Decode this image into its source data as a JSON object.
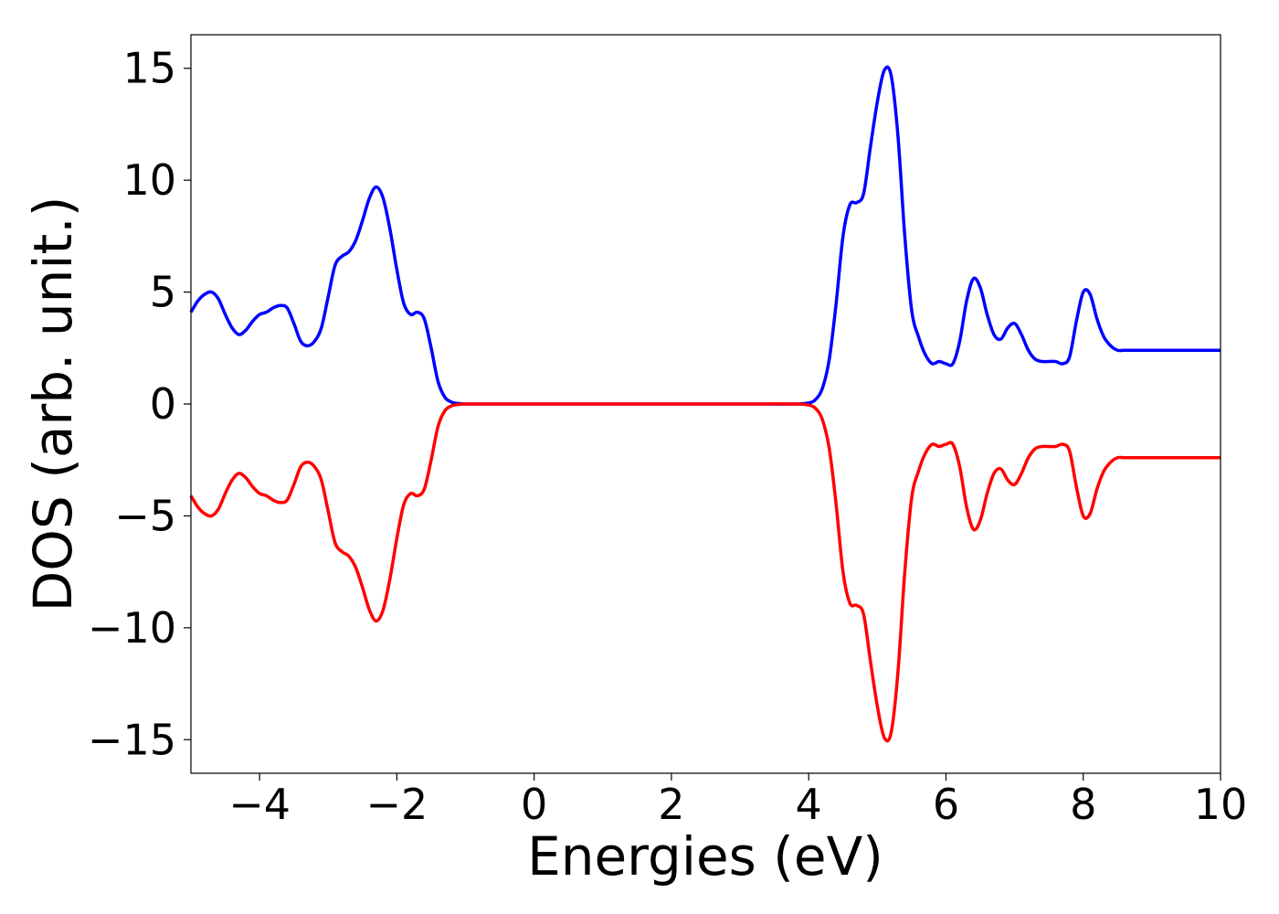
{
  "chart_data": {
    "type": "line",
    "title": "",
    "xlabel": "Energies (eV)",
    "ylabel": "DOS (arb. unit.)",
    "xlim": [
      -5,
      10
    ],
    "ylim": [
      -16.5,
      16.5
    ],
    "xticks": [
      -4,
      -2,
      0,
      2,
      4,
      6,
      8,
      10
    ],
    "xtick_labels": [
      "−4",
      "−2",
      "0",
      "2",
      "4",
      "6",
      "8",
      "10"
    ],
    "yticks": [
      15,
      10,
      5,
      0,
      -5,
      -10,
      -15
    ],
    "ytick_labels": [
      "15",
      "10",
      "5",
      "0",
      "−5",
      "−10",
      "−15"
    ],
    "grid": false,
    "legend": "none",
    "series": [
      {
        "color": "#0000ff",
        "x": [
          -5.0,
          -4.9,
          -4.8,
          -4.7,
          -4.6,
          -4.5,
          -4.4,
          -4.3,
          -4.2,
          -4.1,
          -4.0,
          -3.9,
          -3.8,
          -3.7,
          -3.6,
          -3.5,
          -3.4,
          -3.3,
          -3.2,
          -3.1,
          -3.0,
          -2.9,
          -2.8,
          -2.7,
          -2.6,
          -2.5,
          -2.4,
          -2.3,
          -2.2,
          -2.1,
          -2.0,
          -1.9,
          -1.8,
          -1.7,
          -1.6,
          -1.5,
          -1.4,
          -1.3,
          -1.2,
          -1.1,
          -1.0,
          -0.9,
          -0.8,
          -0.7,
          -0.6,
          -0.5,
          0.0,
          1.0,
          2.0,
          3.0,
          3.8,
          4.0,
          4.1,
          4.2,
          4.3,
          4.4,
          4.5,
          4.6,
          4.7,
          4.8,
          4.9,
          5.0,
          5.1,
          5.2,
          5.3,
          5.4,
          5.5,
          5.6,
          5.7,
          5.8,
          5.9,
          6.0,
          6.1,
          6.2,
          6.3,
          6.4,
          6.5,
          6.6,
          6.7,
          6.8,
          6.9,
          7.0,
          7.1,
          7.2,
          7.3,
          7.4,
          7.5,
          7.6,
          7.7,
          7.8,
          7.9,
          8.0,
          8.1,
          8.2,
          8.3,
          8.4,
          8.5,
          8.6,
          8.7,
          8.8,
          8.9,
          9.0,
          9.1,
          9.2,
          9.3,
          9.4,
          9.5,
          9.6,
          9.7,
          9.8,
          9.9,
          10.0
        ],
        "values": [
          4.1,
          4.6,
          4.9,
          5.0,
          4.7,
          4.0,
          3.4,
          3.1,
          3.3,
          3.7,
          4.0,
          4.1,
          4.3,
          4.4,
          4.3,
          3.6,
          2.8,
          2.6,
          2.8,
          3.4,
          4.8,
          6.2,
          6.6,
          6.8,
          7.3,
          8.2,
          9.2,
          9.7,
          9.2,
          7.8,
          6.0,
          4.5,
          4.0,
          4.1,
          3.8,
          2.5,
          1.0,
          0.3,
          0.08,
          0.02,
          0.0,
          0.0,
          0.0,
          0.0,
          0.0,
          0.0,
          0.0,
          0.0,
          0.0,
          0.0,
          0.0,
          0.05,
          0.2,
          0.7,
          2.0,
          4.5,
          7.5,
          8.9,
          9.0,
          9.4,
          11.5,
          13.5,
          14.9,
          14.7,
          12.0,
          7.5,
          4.2,
          3.0,
          2.2,
          1.8,
          1.9,
          1.8,
          1.8,
          2.8,
          4.6,
          5.6,
          5.2,
          4.0,
          3.1,
          2.9,
          3.4,
          3.6,
          3.1,
          2.4,
          2.0,
          1.9,
          1.9,
          1.9,
          1.8,
          2.1,
          3.7,
          5.0,
          4.9,
          3.8,
          3.0,
          2.6,
          2.4,
          2.4,
          2.4,
          2.4,
          2.4,
          2.4,
          2.4,
          2.4,
          2.4,
          2.4,
          2.4,
          2.4,
          2.4,
          2.4,
          2.4,
          2.4
        ]
      },
      {
        "color": "#ff0000",
        "x": [
          -5.0,
          -4.9,
          -4.8,
          -4.7,
          -4.6,
          -4.5,
          -4.4,
          -4.3,
          -4.2,
          -4.1,
          -4.0,
          -3.9,
          -3.8,
          -3.7,
          -3.6,
          -3.5,
          -3.4,
          -3.3,
          -3.2,
          -3.1,
          -3.0,
          -2.9,
          -2.8,
          -2.7,
          -2.6,
          -2.5,
          -2.4,
          -2.3,
          -2.2,
          -2.1,
          -2.0,
          -1.9,
          -1.8,
          -1.7,
          -1.6,
          -1.5,
          -1.4,
          -1.3,
          -1.2,
          -1.1,
          -1.0,
          -0.9,
          -0.8,
          -0.7,
          -0.6,
          -0.5,
          0.0,
          1.0,
          2.0,
          3.0,
          3.8,
          4.0,
          4.1,
          4.2,
          4.3,
          4.4,
          4.5,
          4.6,
          4.7,
          4.8,
          4.9,
          5.0,
          5.1,
          5.2,
          5.3,
          5.4,
          5.5,
          5.6,
          5.7,
          5.8,
          5.9,
          6.0,
          6.1,
          6.2,
          6.3,
          6.4,
          6.5,
          6.6,
          6.7,
          6.8,
          6.9,
          7.0,
          7.1,
          7.2,
          7.3,
          7.4,
          7.5,
          7.6,
          7.7,
          7.8,
          7.9,
          8.0,
          8.1,
          8.2,
          8.3,
          8.4,
          8.5,
          8.6,
          8.7,
          8.8,
          8.9,
          9.0,
          9.1,
          9.2,
          9.3,
          9.4,
          9.5,
          9.6,
          9.7,
          9.8,
          9.9,
          10.0
        ],
        "values": [
          -4.1,
          -4.6,
          -4.9,
          -5.0,
          -4.7,
          -4.0,
          -3.4,
          -3.1,
          -3.3,
          -3.7,
          -4.0,
          -4.1,
          -4.3,
          -4.4,
          -4.3,
          -3.6,
          -2.8,
          -2.6,
          -2.8,
          -3.4,
          -4.8,
          -6.2,
          -6.6,
          -6.8,
          -7.3,
          -8.2,
          -9.2,
          -9.7,
          -9.2,
          -7.8,
          -6.0,
          -4.5,
          -4.0,
          -4.1,
          -3.8,
          -2.5,
          -1.0,
          -0.3,
          -0.08,
          -0.02,
          0.0,
          0.0,
          0.0,
          0.0,
          0.0,
          0.0,
          0.0,
          0.0,
          0.0,
          0.0,
          0.0,
          -0.05,
          -0.2,
          -0.7,
          -2.0,
          -4.5,
          -7.5,
          -8.9,
          -9.0,
          -9.4,
          -11.5,
          -13.5,
          -14.9,
          -14.7,
          -12.0,
          -7.5,
          -4.2,
          -3.0,
          -2.2,
          -1.8,
          -1.9,
          -1.8,
          -1.8,
          -2.8,
          -4.6,
          -5.6,
          -5.2,
          -4.0,
          -3.1,
          -2.9,
          -3.4,
          -3.6,
          -3.1,
          -2.4,
          -2.0,
          -1.9,
          -1.9,
          -1.9,
          -1.8,
          -2.1,
          -3.7,
          -5.0,
          -4.9,
          -3.8,
          -3.0,
          -2.6,
          -2.4,
          -2.4,
          -2.4,
          -2.4,
          -2.4,
          -2.4,
          -2.4,
          -2.4,
          -2.4,
          -2.4,
          -2.4,
          -2.4,
          -2.4,
          -2.4,
          -2.4,
          -2.4
        ]
      }
    ]
  }
}
